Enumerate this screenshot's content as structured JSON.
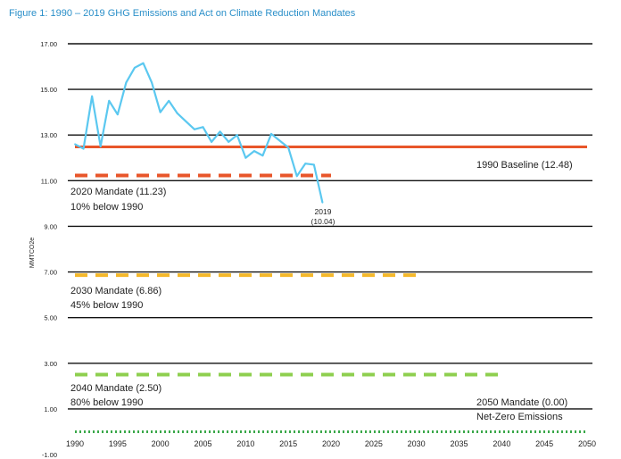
{
  "chart_data": {
    "type": "line",
    "title": "Figure 1: 1990 – 2019 GHG Emissions and Act on Climate Reduction Mandates",
    "ylabel": "MMTCO2e",
    "ylim": [
      -1,
      17
    ],
    "xlim": [
      1990,
      2050
    ],
    "y_ticks": [
      "17.00",
      "15.00",
      "13.00",
      "11.00",
      "9.00",
      "7.00",
      "5.00",
      "3.00",
      "1.00",
      "-1.00"
    ],
    "x_ticks": [
      "1990",
      "1995",
      "2000",
      "2005",
      "2010",
      "2015",
      "2020",
      "2025",
      "2030",
      "2035",
      "2040",
      "2045",
      "2050"
    ],
    "grid": "horizontal",
    "series": [
      {
        "color": "#5bc8f0",
        "x": [
          1990,
          1991,
          1992,
          1993,
          1994,
          1995,
          1996,
          1997,
          1998,
          1999,
          2000,
          2001,
          2002,
          2003,
          2004,
          2005,
          2006,
          2007,
          2008,
          2009,
          2010,
          2011,
          2012,
          2013,
          2014,
          2015,
          2016,
          2017,
          2018,
          2019
        ],
        "values": [
          12.6,
          12.4,
          14.7,
          12.5,
          14.5,
          13.9,
          15.3,
          15.95,
          16.15,
          15.3,
          14.0,
          14.5,
          13.95,
          13.6,
          13.25,
          13.35,
          12.7,
          13.15,
          12.7,
          13.0,
          12.0,
          12.3,
          12.1,
          13.05,
          12.75,
          12.45,
          11.2,
          11.75,
          11.7,
          10.04
        ]
      }
    ],
    "reference_lines": [
      {
        "name": "1990 Baseline",
        "value": 12.48,
        "x_start": 1990,
        "x_end": 2050,
        "color": "#e8562a",
        "style": "solid"
      },
      {
        "name": "2020 Mandate",
        "value": 11.23,
        "x_start": 1990,
        "x_end": 2020,
        "color": "#e8562a",
        "style": "dashed"
      },
      {
        "name": "2030 Mandate",
        "value": 6.86,
        "x_start": 1990,
        "x_end": 2030,
        "color": "#f5b82a",
        "style": "dashed"
      },
      {
        "name": "2040 Mandate",
        "value": 2.5,
        "x_start": 1990,
        "x_end": 2040,
        "color": "#8ecf4f",
        "style": "dashed"
      },
      {
        "name": "2050 Mandate",
        "value": 0.0,
        "x_start": 1990,
        "x_end": 2050,
        "color": "#3aa84a",
        "style": "dotted"
      }
    ],
    "annotations": {
      "baseline": "1990 Baseline (12.48)",
      "m2020_line1": "2020 Mandate (11.23)",
      "m2020_line2": "10% below 1990",
      "m2030_line1": "2030 Mandate (6.86)",
      "m2030_line2": "45% below 1990",
      "m2040_line1": "2040 Mandate (2.50)",
      "m2040_line2": "80% below 1990",
      "m2050_line1": "2050 Mandate (0.00)",
      "m2050_line2": "Net-Zero Emissions",
      "point_year": "2019",
      "point_value": "(10.04)"
    }
  }
}
